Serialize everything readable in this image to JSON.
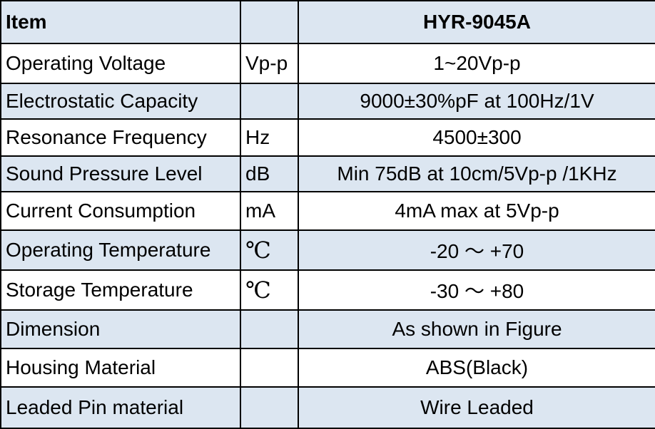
{
  "table": {
    "header": [
      "Item",
      null,
      "HYR-9045A"
    ],
    "rows": [
      [
        "Operating Voltage",
        "Vp-p",
        "1~20Vp-p"
      ],
      [
        "Electrostatic Capacity",
        null,
        "9000±30%pF at 100Hz/1V"
      ],
      [
        "Resonance Frequency",
        "Hz",
        "4500±300"
      ],
      [
        "Sound Pressure Level",
        "dB",
        "Min 75dB at 10cm/5Vp-p /1KHz"
      ],
      [
        "Current Consumption",
        "mA",
        "4mA max at 5Vp-p"
      ],
      [
        "Operating Temperature",
        "℃",
        "-20 ～ +70"
      ],
      [
        "Storage Temperature",
        "℃",
        "-30 ～ +80"
      ],
      [
        "Dimension",
        null,
        "As shown in Figure"
      ],
      [
        "Housing Material",
        null,
        "ABS(Black)"
      ],
      [
        "Leaded Pin material",
        null,
        "Wire Leaded"
      ]
    ]
  }
}
